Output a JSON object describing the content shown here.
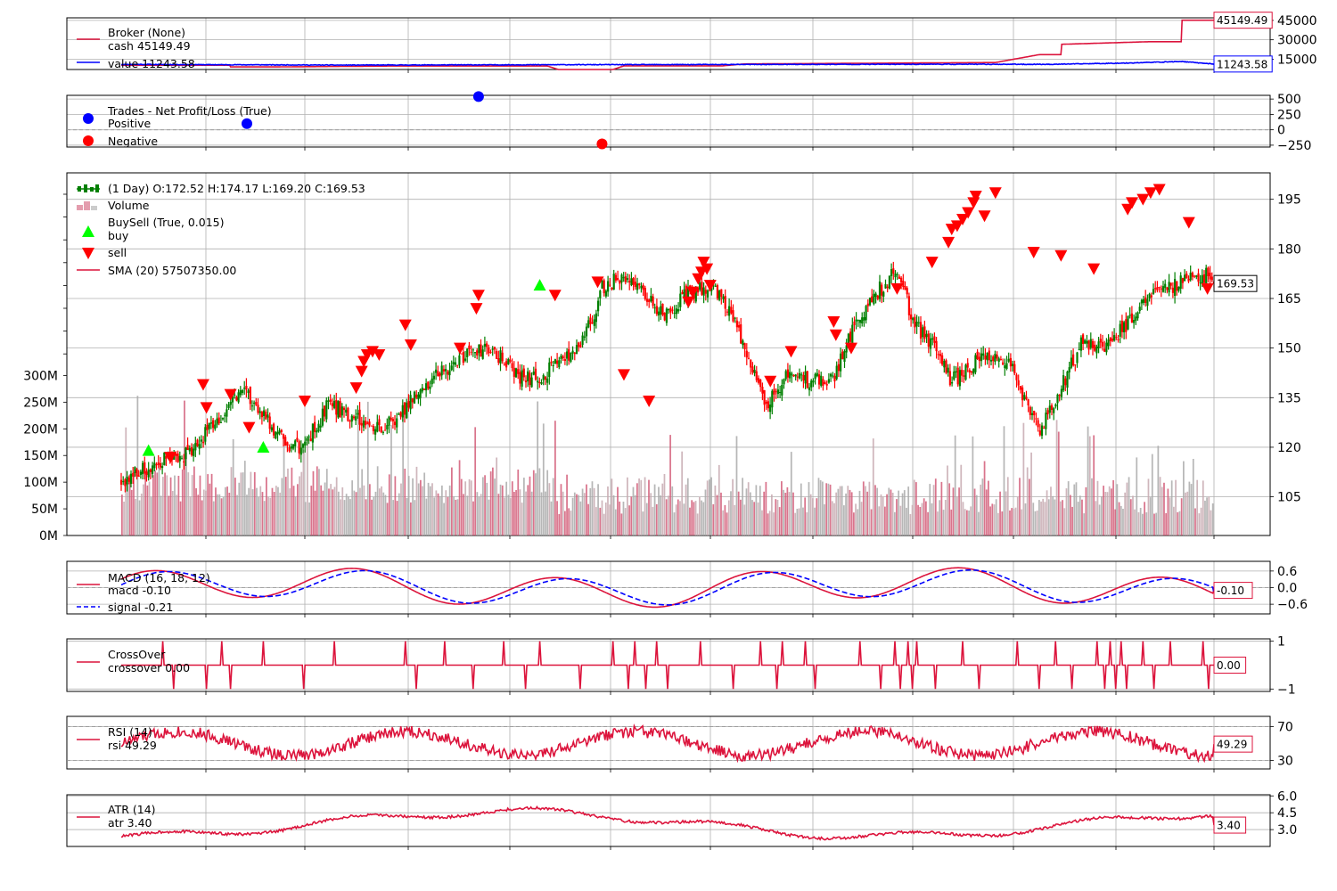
{
  "colors": {
    "red": "#dc143c",
    "blue": "#0000ff",
    "up": "#007f00",
    "down": "#ff0000",
    "buy": "#00ff00",
    "sell": "#ff0000",
    "volume_up": "#c7a9b0",
    "volume_down": "#d25c78",
    "volume_gray": "#aaaaaa",
    "grid": "#b0b0b0"
  },
  "chart_data": [
    {
      "id": "broker",
      "type": "line",
      "title": "Broker (None)",
      "series": [
        {
          "name": "cash 45149.49",
          "color": "#dc143c",
          "last": 45149.49,
          "last_label": "45149.49",
          "profile": [
            [
              0,
              10300
            ],
            [
              0.1,
              10300
            ],
            [
              0.1,
              9000
            ],
            [
              0.14,
              9000
            ],
            [
              0.25,
              9700
            ],
            [
              0.39,
              9700
            ],
            [
              0.4,
              7000
            ],
            [
              0.45,
              7000
            ],
            [
              0.46,
              9800
            ],
            [
              0.55,
              9800
            ],
            [
              0.57,
              11300
            ],
            [
              0.8,
              12400
            ],
            [
              0.84,
              18500
            ],
            [
              0.86,
              18500
            ],
            [
              0.86,
              26500
            ],
            [
              0.94,
              28500
            ],
            [
              0.97,
              28500
            ],
            [
              0.97,
              45149
            ],
            [
              1,
              45149
            ]
          ]
        },
        {
          "name": "value 11243.58",
          "color": "#0000ff",
          "last": 11243.58,
          "last_label": "11243.58",
          "profile": [
            [
              0,
              11000
            ],
            [
              0.2,
              10400
            ],
            [
              0.4,
              10700
            ],
            [
              0.6,
              10900
            ],
            [
              0.75,
              11100
            ],
            [
              0.85,
              11000
            ],
            [
              0.92,
              12000
            ],
            [
              0.97,
              13200
            ],
            [
              1,
              11243
            ]
          ]
        }
      ],
      "ylim": [
        7000,
        47000
      ],
      "yticks": [
        15000,
        30000,
        45000
      ],
      "ytick_labels": [
        "15000",
        "30000",
        "45000"
      ]
    },
    {
      "id": "trades",
      "type": "scatter",
      "title": "Trades - Net Profit/Loss (True)",
      "series": [
        {
          "name": "Positive",
          "color": "#0000ff",
          "points": [
            {
              "x": 0.115,
              "y": 100
            },
            {
              "x": 0.327,
              "y": 540
            }
          ]
        },
        {
          "name": "Negative",
          "color": "#ff0000",
          "points": [
            {
              "x": 0.44,
              "y": -230
            }
          ]
        }
      ],
      "ylim": [
        -280,
        560
      ],
      "yticks": [
        -250,
        0,
        250,
        500
      ],
      "ytick_labels": [
        "−250",
        "0",
        "250",
        "500"
      ]
    },
    {
      "id": "price",
      "type": "candlestick",
      "legend": [
        {
          "name": "(1 Day) O:172.52 H:174.17 L:169.20 C:169.53",
          "kind": "candle"
        },
        {
          "name": "Volume",
          "kind": "volume"
        },
        {
          "name": "BuySell (True, 0.015)",
          "kind": "title"
        },
        {
          "name": "buy",
          "kind": "buy"
        },
        {
          "name": "sell",
          "kind": "sell"
        },
        {
          "name": "SMA (20) 57507350.00",
          "kind": "line"
        }
      ],
      "last_close": 169.53,
      "last_label": "169.53",
      "ylim": [
        93.3,
        203
      ],
      "yticks": [
        105,
        120,
        135,
        150,
        165,
        180,
        195
      ],
      "ytick_labels": [
        "105",
        "120",
        "135",
        "150",
        "165",
        "180",
        "195"
      ],
      "volume_ylim": [
        0,
        680000000
      ],
      "volume_ticks": [
        0,
        50000000,
        100000000,
        150000000,
        200000000,
        250000000,
        300000000
      ],
      "volume_tick_labels": [
        "0M",
        "50M",
        "100M",
        "150M",
        "200M",
        "250M",
        "300M"
      ],
      "close_profile": [
        [
          0,
          110
        ],
        [
          0.03,
          115
        ],
        [
          0.06,
          118
        ],
        [
          0.09,
          128
        ],
        [
          0.11,
          138
        ],
        [
          0.13,
          130
        ],
        [
          0.14,
          125
        ],
        [
          0.155,
          119
        ],
        [
          0.17,
          122
        ],
        [
          0.19,
          133
        ],
        [
          0.21,
          130
        ],
        [
          0.23,
          125
        ],
        [
          0.25,
          128
        ],
        [
          0.28,
          140
        ],
        [
          0.31,
          147
        ],
        [
          0.34,
          150
        ],
        [
          0.36,
          142
        ],
        [
          0.38,
          141
        ],
        [
          0.41,
          147
        ],
        [
          0.43,
          158
        ],
        [
          0.44,
          168
        ],
        [
          0.46,
          172
        ],
        [
          0.48,
          165
        ],
        [
          0.5,
          160
        ],
        [
          0.52,
          167
        ],
        [
          0.54,
          168
        ],
        [
          0.56,
          160
        ],
        [
          0.575,
          147
        ],
        [
          0.59,
          132
        ],
        [
          0.61,
          143
        ],
        [
          0.63,
          140
        ],
        [
          0.65,
          140
        ],
        [
          0.67,
          156
        ],
        [
          0.685,
          164
        ],
        [
          0.7,
          170
        ],
        [
          0.71,
          174
        ],
        [
          0.725,
          158
        ],
        [
          0.74,
          152
        ],
        [
          0.76,
          140
        ],
        [
          0.78,
          145
        ],
        [
          0.8,
          149
        ],
        [
          0.815,
          145
        ],
        [
          0.83,
          131
        ],
        [
          0.84,
          125
        ],
        [
          0.86,
          138
        ],
        [
          0.88,
          152
        ],
        [
          0.9,
          150
        ],
        [
          0.92,
          157
        ],
        [
          0.94,
          165
        ],
        [
          0.96,
          168
        ],
        [
          0.98,
          172
        ]
      ],
      "buy_markers": [
        {
          "x": 0.025,
          "y": 119
        },
        {
          "x": 0.13,
          "y": 120
        },
        {
          "x": 0.383,
          "y": 169
        }
      ],
      "sell_markers": [
        {
          "x": 0.045,
          "y": 117
        },
        {
          "x": 0.075,
          "y": 139
        },
        {
          "x": 0.078,
          "y": 132
        },
        {
          "x": 0.1,
          "y": 136
        },
        {
          "x": 0.117,
          "y": 126
        },
        {
          "x": 0.168,
          "y": 134
        },
        {
          "x": 0.215,
          "y": 138
        },
        {
          "x": 0.22,
          "y": 143
        },
        {
          "x": 0.222,
          "y": 146
        },
        {
          "x": 0.225,
          "y": 148
        },
        {
          "x": 0.23,
          "y": 149
        },
        {
          "x": 0.236,
          "y": 148
        },
        {
          "x": 0.26,
          "y": 157
        },
        {
          "x": 0.265,
          "y": 151
        },
        {
          "x": 0.31,
          "y": 150
        },
        {
          "x": 0.325,
          "y": 162
        },
        {
          "x": 0.327,
          "y": 166
        },
        {
          "x": 0.397,
          "y": 166
        },
        {
          "x": 0.436,
          "y": 170
        },
        {
          "x": 0.46,
          "y": 142
        },
        {
          "x": 0.483,
          "y": 134
        },
        {
          "x": 0.519,
          "y": 164
        },
        {
          "x": 0.523,
          "y": 167
        },
        {
          "x": 0.528,
          "y": 171
        },
        {
          "x": 0.531,
          "y": 173
        },
        {
          "x": 0.533,
          "y": 176
        },
        {
          "x": 0.536,
          "y": 174
        },
        {
          "x": 0.539,
          "y": 169
        },
        {
          "x": 0.594,
          "y": 140
        },
        {
          "x": 0.613,
          "y": 149
        },
        {
          "x": 0.652,
          "y": 158
        },
        {
          "x": 0.654,
          "y": 154
        },
        {
          "x": 0.668,
          "y": 150
        },
        {
          "x": 0.71,
          "y": 168
        },
        {
          "x": 0.742,
          "y": 176
        },
        {
          "x": 0.757,
          "y": 182
        },
        {
          "x": 0.76,
          "y": 186
        },
        {
          "x": 0.765,
          "y": 187
        },
        {
          "x": 0.77,
          "y": 189
        },
        {
          "x": 0.775,
          "y": 191
        },
        {
          "x": 0.78,
          "y": 194
        },
        {
          "x": 0.782,
          "y": 196
        },
        {
          "x": 0.79,
          "y": 190
        },
        {
          "x": 0.8,
          "y": 197
        },
        {
          "x": 0.835,
          "y": 179
        },
        {
          "x": 0.86,
          "y": 178
        },
        {
          "x": 0.89,
          "y": 174
        },
        {
          "x": 0.921,
          "y": 192
        },
        {
          "x": 0.925,
          "y": 194
        },
        {
          "x": 0.935,
          "y": 195
        },
        {
          "x": 0.942,
          "y": 197
        },
        {
          "x": 0.95,
          "y": 198
        },
        {
          "x": 0.977,
          "y": 188
        },
        {
          "x": 0.994,
          "y": 168
        }
      ]
    },
    {
      "id": "macd",
      "type": "line",
      "title": "MACD (16, 18, 12)",
      "series": [
        {
          "name": "macd -0.10",
          "color": "#dc143c",
          "last": -0.1,
          "last_label": "-0.10"
        },
        {
          "name": "signal -0.21",
          "color": "#0000ff",
          "last": -0.21,
          "last_label": "",
          "dashed": true
        }
      ],
      "ylim": [
        -0.95,
        0.95
      ],
      "yticks": [
        -0.6,
        0.0,
        0.6
      ],
      "ytick_labels": [
        "−0.6",
        "0.0",
        "0.6"
      ]
    },
    {
      "id": "crossover",
      "type": "line",
      "title": "CrossOver",
      "series": [
        {
          "name": "crossover 0.00",
          "color": "#dc143c",
          "last": 0.0,
          "last_label": "0.00"
        }
      ],
      "ylim": [
        -1.1,
        1.1
      ],
      "yticks": [
        -1,
        1
      ],
      "ytick_labels": [
        "−1",
        "1"
      ],
      "events": [
        {
          "x": 0.038,
          "v": 1
        },
        {
          "x": 0.048,
          "v": -1
        },
        {
          "x": 0.078,
          "v": -1
        },
        {
          "x": 0.092,
          "v": 1
        },
        {
          "x": 0.1,
          "v": -1
        },
        {
          "x": 0.13,
          "v": 1
        },
        {
          "x": 0.167,
          "v": -1
        },
        {
          "x": 0.195,
          "v": 1
        },
        {
          "x": 0.26,
          "v": 1
        },
        {
          "x": 0.27,
          "v": -1
        },
        {
          "x": 0.296,
          "v": 1
        },
        {
          "x": 0.322,
          "v": -1
        },
        {
          "x": 0.35,
          "v": 1
        },
        {
          "x": 0.37,
          "v": -1
        },
        {
          "x": 0.383,
          "v": 1
        },
        {
          "x": 0.42,
          "v": -1
        },
        {
          "x": 0.45,
          "v": 1
        },
        {
          "x": 0.464,
          "v": -1
        },
        {
          "x": 0.47,
          "v": 1
        },
        {
          "x": 0.48,
          "v": -1
        },
        {
          "x": 0.49,
          "v": 1
        },
        {
          "x": 0.5,
          "v": -1
        },
        {
          "x": 0.53,
          "v": 1
        },
        {
          "x": 0.56,
          "v": -1
        },
        {
          "x": 0.585,
          "v": 1
        },
        {
          "x": 0.6,
          "v": -1
        },
        {
          "x": 0.605,
          "v": 1
        },
        {
          "x": 0.626,
          "v": 1
        },
        {
          "x": 0.635,
          "v": -1
        },
        {
          "x": 0.676,
          "v": 1
        },
        {
          "x": 0.695,
          "v": -1
        },
        {
          "x": 0.708,
          "v": 1
        },
        {
          "x": 0.713,
          "v": -1
        },
        {
          "x": 0.72,
          "v": 1
        },
        {
          "x": 0.724,
          "v": -1
        },
        {
          "x": 0.728,
          "v": 1
        },
        {
          "x": 0.745,
          "v": -1
        },
        {
          "x": 0.77,
          "v": 1
        },
        {
          "x": 0.785,
          "v": -1
        },
        {
          "x": 0.82,
          "v": 1
        },
        {
          "x": 0.84,
          "v": -1
        },
        {
          "x": 0.855,
          "v": 1
        },
        {
          "x": 0.87,
          "v": -1
        },
        {
          "x": 0.893,
          "v": 1
        },
        {
          "x": 0.9,
          "v": -1
        },
        {
          "x": 0.905,
          "v": 1
        },
        {
          "x": 0.91,
          "v": -1
        },
        {
          "x": 0.915,
          "v": 1
        },
        {
          "x": 0.92,
          "v": -1
        },
        {
          "x": 0.935,
          "v": 1
        },
        {
          "x": 0.945,
          "v": -1
        },
        {
          "x": 0.96,
          "v": 1
        },
        {
          "x": 0.99,
          "v": 1
        },
        {
          "x": 0.995,
          "v": -1
        }
      ]
    },
    {
      "id": "rsi",
      "type": "line",
      "title": "RSI (14)",
      "series": [
        {
          "name": "rsi 49.29",
          "color": "#dc143c",
          "last": 49.29,
          "last_label": "49.29"
        }
      ],
      "ylim": [
        20,
        82
      ],
      "yticks": [
        30,
        70
      ],
      "ytick_labels": [
        "30",
        "70"
      ]
    },
    {
      "id": "atr",
      "type": "line",
      "title": "ATR (14)",
      "series": [
        {
          "name": "atr 3.40",
          "color": "#dc143c",
          "last": 3.4,
          "last_label": "3.40"
        }
      ],
      "ylim": [
        1.5,
        6.1
      ],
      "yticks": [
        3.0,
        4.5,
        6.0
      ],
      "ytick_labels": [
        "3.0",
        "4.5",
        "6.0"
      ]
    }
  ]
}
